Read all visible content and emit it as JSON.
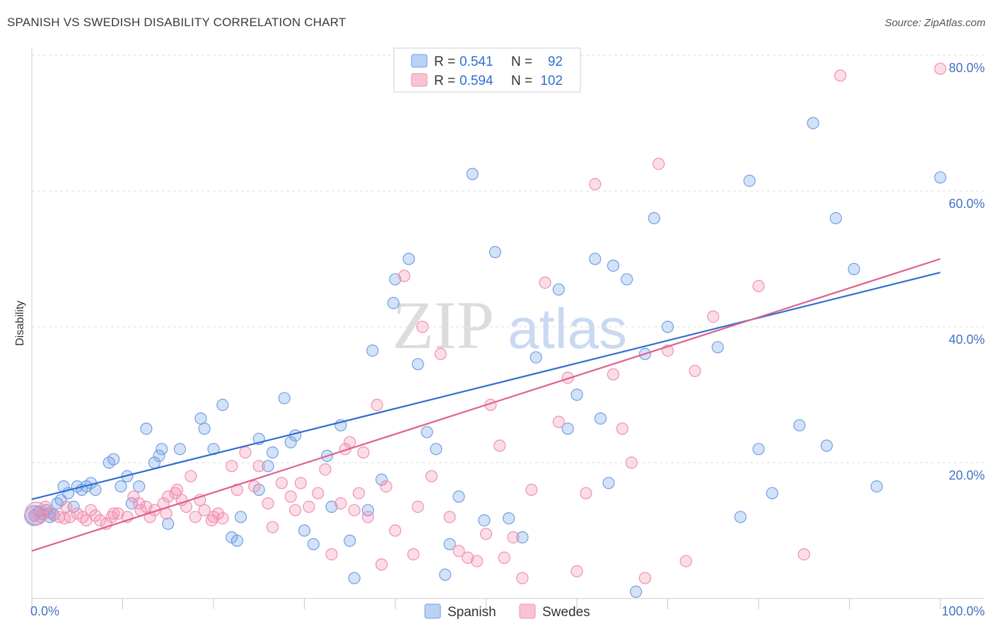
{
  "title": "SPANISH VS SWEDISH DISABILITY CORRELATION CHART",
  "source": "Source: ZipAtlas.com",
  "watermark": {
    "zip": "ZIP",
    "atlas": "atlas"
  },
  "legend": {
    "spanish": {
      "r_label": "R =",
      "r": "0.541",
      "n_label": "N =",
      "n": "92"
    },
    "swedes": {
      "r_label": "R =",
      "r": "0.594",
      "n_label": "N =",
      "n": "102"
    }
  },
  "bottom_legend": [
    "Spanish",
    "Swedes"
  ],
  "chart_data": {
    "type": "scatter",
    "xlabel": "",
    "ylabel": "Disability",
    "xlim": [
      0,
      100
    ],
    "ylim": [
      0,
      80
    ],
    "x_tick_labels": [
      "0.0%",
      "100.0%"
    ],
    "y_tick_labels": [
      "20.0%",
      "40.0%",
      "60.0%",
      "80.0%"
    ],
    "y_ticks": [
      20,
      40,
      60,
      80
    ],
    "grid": true,
    "colors": {
      "spanish": "#6fa0e6",
      "swedes": "#f28fb0",
      "spanish_line": "#2f6fd1",
      "swedes_line": "#e0608f"
    },
    "series": [
      {
        "name": "Spanish",
        "trend": [
          [
            0,
            14.6
          ],
          [
            100,
            48.0
          ]
        ],
        "points": [
          [
            0.3,
            12.2
          ],
          [
            0.8,
            12.8
          ],
          [
            1.2,
            12.4
          ],
          [
            1.6,
            13.0
          ],
          [
            2.0,
            12.6
          ],
          [
            2.4,
            12.3
          ],
          [
            2.8,
            14.0
          ],
          [
            3.2,
            14.5
          ],
          [
            3.5,
            16.5
          ],
          [
            4.0,
            15.5
          ],
          [
            4.6,
            13.5
          ],
          [
            5.0,
            16.5
          ],
          [
            5.5,
            16.0
          ],
          [
            6.0,
            16.5
          ],
          [
            6.5,
            17.0
          ],
          [
            7.0,
            16.0
          ],
          [
            8.5,
            20.0
          ],
          [
            9.0,
            20.5
          ],
          [
            9.8,
            16.5
          ],
          [
            10.5,
            18.0
          ],
          [
            11.0,
            14.0
          ],
          [
            11.8,
            16.5
          ],
          [
            12.6,
            25.0
          ],
          [
            13.5,
            20.0
          ],
          [
            14.0,
            21.0
          ],
          [
            14.3,
            22.0
          ],
          [
            15.0,
            11.0
          ],
          [
            16.3,
            22.0
          ],
          [
            18.6,
            26.5
          ],
          [
            19.0,
            25.0
          ],
          [
            20.0,
            22.0
          ],
          [
            21.0,
            28.5
          ],
          [
            22.0,
            9.0
          ],
          [
            22.6,
            8.5
          ],
          [
            23.0,
            12.0
          ],
          [
            25.0,
            23.5
          ],
          [
            26.0,
            19.5
          ],
          [
            26.5,
            21.5
          ],
          [
            27.8,
            29.5
          ],
          [
            28.5,
            23.0
          ],
          [
            29.0,
            24.0
          ],
          [
            30.0,
            10.0
          ],
          [
            31.0,
            8.0
          ],
          [
            32.5,
            21.0
          ],
          [
            33.0,
            13.5
          ],
          [
            34.0,
            25.5
          ],
          [
            35.0,
            8.5
          ],
          [
            35.5,
            3.0
          ],
          [
            37.0,
            13.0
          ],
          [
            37.5,
            36.5
          ],
          [
            38.5,
            17.5
          ],
          [
            39.8,
            43.5
          ],
          [
            41.5,
            50.0
          ],
          [
            42.5,
            34.5
          ],
          [
            43.5,
            24.5
          ],
          [
            44.5,
            22.0
          ],
          [
            45.5,
            3.5
          ],
          [
            46.0,
            8.0
          ],
          [
            47.0,
            15.0
          ],
          [
            48.5,
            62.5
          ],
          [
            49.8,
            11.5
          ],
          [
            51.0,
            51.0
          ],
          [
            52.5,
            11.8
          ],
          [
            54.0,
            9.0
          ],
          [
            55.5,
            35.5
          ],
          [
            58.0,
            45.5
          ],
          [
            59.0,
            25.0
          ],
          [
            60.0,
            30.0
          ],
          [
            62.0,
            50.0
          ],
          [
            62.6,
            26.5
          ],
          [
            63.5,
            17.0
          ],
          [
            64.0,
            49.0
          ],
          [
            65.5,
            47.0
          ],
          [
            66.5,
            1.0
          ],
          [
            67.5,
            36.0
          ],
          [
            68.5,
            56.0
          ],
          [
            70.0,
            40.0
          ],
          [
            75.5,
            37.0
          ],
          [
            78.0,
            12.0
          ],
          [
            79.0,
            61.5
          ],
          [
            80.0,
            22.0
          ],
          [
            81.5,
            15.5
          ],
          [
            84.5,
            25.5
          ],
          [
            86.0,
            70.0
          ],
          [
            87.5,
            22.5
          ],
          [
            88.5,
            56.0
          ],
          [
            90.5,
            48.5
          ],
          [
            93.0,
            16.5
          ],
          [
            100.0,
            62.0
          ],
          [
            40.0,
            47.0
          ],
          [
            25.0,
            16.0
          ],
          [
            2.0,
            12.0
          ]
        ]
      },
      {
        "name": "Swedes",
        "trend": [
          [
            0,
            7.0
          ],
          [
            100,
            50.0
          ]
        ],
        "points": [
          [
            0.5,
            12.5
          ],
          [
            1.0,
            12.0
          ],
          [
            1.5,
            13.5
          ],
          [
            2.2,
            12.5
          ],
          [
            3.0,
            12.0
          ],
          [
            3.6,
            11.8
          ],
          [
            4.2,
            12.0
          ],
          [
            5.0,
            12.5
          ],
          [
            5.6,
            12.0
          ],
          [
            6.5,
            13.0
          ],
          [
            7.0,
            12.2
          ],
          [
            7.5,
            11.5
          ],
          [
            8.2,
            11.0
          ],
          [
            8.8,
            12.0
          ],
          [
            9.5,
            12.5
          ],
          [
            10.5,
            12.0
          ],
          [
            11.2,
            15.0
          ],
          [
            12.0,
            13.0
          ],
          [
            12.6,
            13.5
          ],
          [
            13.5,
            13.0
          ],
          [
            14.5,
            14.0
          ],
          [
            15.0,
            15.0
          ],
          [
            15.8,
            15.5
          ],
          [
            16.5,
            14.5
          ],
          [
            17.0,
            13.5
          ],
          [
            17.5,
            18.0
          ],
          [
            18.0,
            12.0
          ],
          [
            19.0,
            13.0
          ],
          [
            19.8,
            11.5
          ],
          [
            20.5,
            12.5
          ],
          [
            21.0,
            11.8
          ],
          [
            22.0,
            19.5
          ],
          [
            22.6,
            16.0
          ],
          [
            23.5,
            21.5
          ],
          [
            24.5,
            16.5
          ],
          [
            25.0,
            19.5
          ],
          [
            26.0,
            14.0
          ],
          [
            26.5,
            10.5
          ],
          [
            27.5,
            17.0
          ],
          [
            28.5,
            15.0
          ],
          [
            29.0,
            13.0
          ],
          [
            29.6,
            17.0
          ],
          [
            30.5,
            13.5
          ],
          [
            31.5,
            15.5
          ],
          [
            32.3,
            19.0
          ],
          [
            33.0,
            6.5
          ],
          [
            34.0,
            14.0
          ],
          [
            34.5,
            22.0
          ],
          [
            35.0,
            23.0
          ],
          [
            35.5,
            13.0
          ],
          [
            36.0,
            15.5
          ],
          [
            36.5,
            21.5
          ],
          [
            37.0,
            12.0
          ],
          [
            38.0,
            28.5
          ],
          [
            39.0,
            16.5
          ],
          [
            40.0,
            10.0
          ],
          [
            41.0,
            47.5
          ],
          [
            42.0,
            6.5
          ],
          [
            42.5,
            13.5
          ],
          [
            43.0,
            40.0
          ],
          [
            44.0,
            18.0
          ],
          [
            45.0,
            36.0
          ],
          [
            46.0,
            12.0
          ],
          [
            47.0,
            7.0
          ],
          [
            48.0,
            6.0
          ],
          [
            49.0,
            5.5
          ],
          [
            50.0,
            9.5
          ],
          [
            50.5,
            28.5
          ],
          [
            51.5,
            22.5
          ],
          [
            52.0,
            6.0
          ],
          [
            53.0,
            9.0
          ],
          [
            54.0,
            3.0
          ],
          [
            55.0,
            16.0
          ],
          [
            56.5,
            46.5
          ],
          [
            58.0,
            26.0
          ],
          [
            59.0,
            32.5
          ],
          [
            60.0,
            4.0
          ],
          [
            61.0,
            15.5
          ],
          [
            62.0,
            61.0
          ],
          [
            64.0,
            33.0
          ],
          [
            65.0,
            25.0
          ],
          [
            66.0,
            20.0
          ],
          [
            67.5,
            3.0
          ],
          [
            69.0,
            64.0
          ],
          [
            70.0,
            36.5
          ],
          [
            72.0,
            5.5
          ],
          [
            73.0,
            33.5
          ],
          [
            75.0,
            41.5
          ],
          [
            80.0,
            46.0
          ],
          [
            85.0,
            6.5
          ],
          [
            89.0,
            77.0
          ],
          [
            100.0,
            78.0
          ],
          [
            3.8,
            13.5
          ],
          [
            6.0,
            11.5
          ],
          [
            9.0,
            12.5
          ],
          [
            11.8,
            14.0
          ],
          [
            13.0,
            12.0
          ],
          [
            14.8,
            12.5
          ],
          [
            16.0,
            16.0
          ],
          [
            18.5,
            14.5
          ],
          [
            20.0,
            12.0
          ],
          [
            38.5,
            5.0
          ]
        ]
      }
    ]
  }
}
